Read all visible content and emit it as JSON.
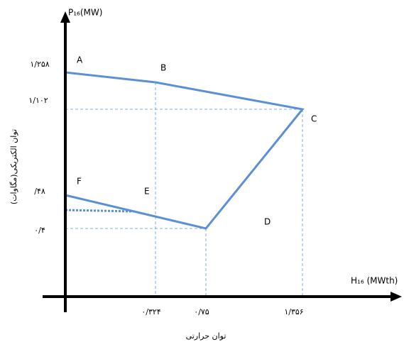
{
  "axes": {
    "y_title": "P₁₆(MW)",
    "x_title": "H₁₆ (MWth)",
    "y_label": "توان الکتریکی(مگاوات)",
    "x_label": "توان حرارتی",
    "y_ticks": [
      "۱/۲۵۸",
      "۱/۱۰۲",
      "/۴۸",
      "۰/۴"
    ],
    "x_ticks": [
      "۰/۳۲۴",
      "۰/۷۵",
      "۱/۳۵۶"
    ]
  },
  "nodes": [
    {
      "label": "A"
    },
    {
      "label": "B"
    },
    {
      "label": "C"
    },
    {
      "label": "D"
    },
    {
      "label": "E"
    },
    {
      "label": "F"
    }
  ]
}
